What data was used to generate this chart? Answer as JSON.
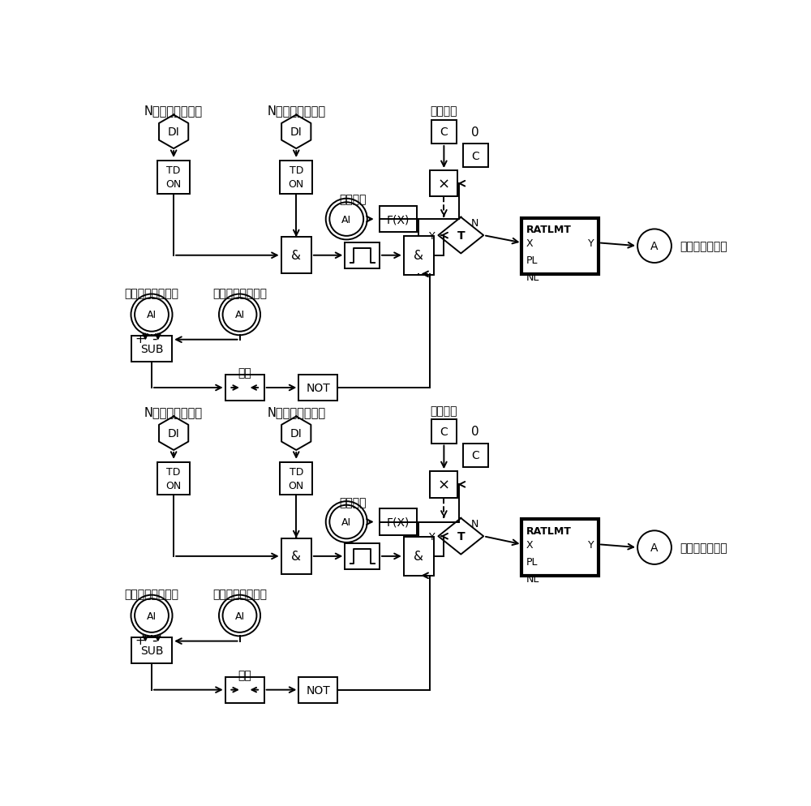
{
  "bg_color": "#ffffff",
  "line_color": "#000000",
  "font_cn": "SimSun",
  "top": {
    "label1": "N给煤机运行信号",
    "label2": "N磨煤机运行信号",
    "steam_label1": "主蒸汽压力设定值",
    "steam_label2": "主蒸汽压力测量值",
    "beichangmeiliang": "补偿煤量",
    "jizhugonglv": "机组功率",
    "gaoxian": "高限",
    "output": "去锅炉主控前馈"
  },
  "bot": {
    "label1": "N给煤机停运信号",
    "label2": "N磨煤机停运信号",
    "steam_label1": "主蒸汽压力测量值",
    "steam_label2": "主蒸汽压力设定值",
    "beichangmeiliang": "补偿煤量",
    "jizhugonglv": "机组功率",
    "gaoxian": "高限",
    "output": "去锅炉主控前馈"
  }
}
